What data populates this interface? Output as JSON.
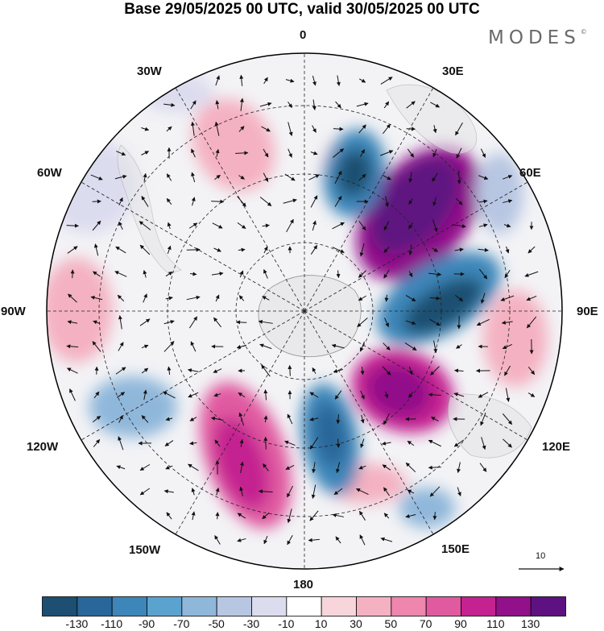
{
  "title": "Base 29/05/2025 00 UTC, valid 30/05/2025 00 UTC",
  "brand": {
    "name": "MODES",
    "mark": "©"
  },
  "map": {
    "projection": "south-polar-stereographic",
    "longitude_labels": {
      "top": "0",
      "top_right": "30E",
      "right_upper": "60E",
      "right": "90E",
      "right_lower": "120E",
      "bottom_right": "150E",
      "bottom": "180",
      "bottom_left": "150W",
      "left_lower": "120W",
      "left": "90W",
      "left_upper": "60W",
      "top_left": "30W"
    },
    "vector_reference": "10",
    "anomaly_colors": {
      "land": "#e6e6e6",
      "coast": "#888888"
    }
  },
  "colorbar": {
    "colors": [
      "#1c4f71",
      "#2a6699",
      "#3d86b9",
      "#5ba3cf",
      "#8fb7da",
      "#b7c6e2",
      "#dcdcef",
      "#ffffff",
      "#f7d5da",
      "#f4b1c1",
      "#ee86ae",
      "#e05aa0",
      "#c42290",
      "#92108a",
      "#5e1281"
    ],
    "tick_labels": [
      "-130",
      "-110",
      "-90",
      "-70",
      "-50",
      "-30",
      "-10",
      "10",
      "30",
      "50",
      "70",
      "90",
      "110",
      "130"
    ]
  }
}
